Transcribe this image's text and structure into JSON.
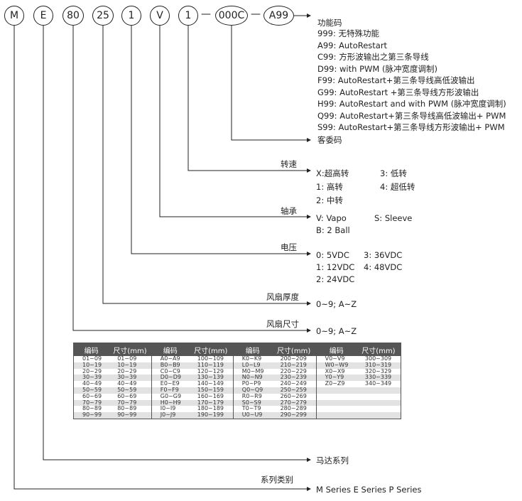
{
  "nodes": [
    {
      "id": "series",
      "label": "M"
    },
    {
      "id": "motor",
      "label": "E"
    },
    {
      "id": "size",
      "label": "80"
    },
    {
      "id": "thickness",
      "label": "25"
    },
    {
      "id": "voltage",
      "label": "1"
    },
    {
      "id": "bearing",
      "label": "V"
    },
    {
      "id": "speed",
      "label": "1"
    },
    {
      "id": "customer",
      "label": "000C"
    },
    {
      "id": "function",
      "label": "A99"
    }
  ],
  "dash": "—",
  "function_code": {
    "title": "功能码",
    "items": [
      "999: 无特殊功能",
      "A99: AutoRestart",
      "C99: 方形波输出之第三条导线",
      "D99: with PWM (脉冲宽度调制)",
      "F99: AutoRestart+第三条导线高低波输出",
      "G99: AutoRestart +第三条导线方形波输出",
      "H99: AutoRestart and with PWM (脉冲宽度调制)",
      "Q99: AutoRestart+第三条导线高低波输出+ PWM",
      "S99: AutoRestart+第三条导线方形波输出+ PWM"
    ]
  },
  "customer_code": {
    "title": "客委码"
  },
  "speed": {
    "title": "转速",
    "options": [
      "X:超高转",
      "3: 低转",
      "1: 高转",
      "4: 超低转",
      "2: 中转"
    ]
  },
  "bearing": {
    "title": "轴承",
    "options": [
      "V: Vapo",
      "S: Sleeve",
      "B: 2 Ball"
    ]
  },
  "voltage": {
    "title": "电压",
    "options": [
      "0:  5VDC",
      "3: 36VDC",
      "1: 12VDC",
      "4: 48VDC",
      "2: 24VDC"
    ]
  },
  "thickness": {
    "title": "风扇厚度",
    "value": "0~9; A~Z"
  },
  "size": {
    "title": "风扇尺寸",
    "value": "0~9; A~Z"
  },
  "motor": {
    "title": "马达系列"
  },
  "series": {
    "title": "系列类别",
    "value": "M Series  E Series  P Series"
  },
  "size_table": {
    "headers": [
      "编码",
      "尺寸(mm)",
      "编码",
      "尺寸(mm)",
      "编码",
      "尺寸(mm)",
      "编码",
      "尺寸(mm)"
    ],
    "rows": [
      [
        "01~09",
        "01~09",
        "A0~A9",
        "100~109",
        "K0~K9",
        "200~209",
        "V0~V9",
        "300~309"
      ],
      [
        "10~19",
        "10~19",
        "B0~B9",
        "110~119",
        "L0~L9",
        "210~219",
        "W0~W9",
        "310~319"
      ],
      [
        "20~29",
        "20~29",
        "C0~C9",
        "120~129",
        "M0~M9",
        "220~229",
        "X0~X9",
        "320~329"
      ],
      [
        "30~39",
        "30~39",
        "D0~D9",
        "130~139",
        "N0~N9",
        "230~239",
        "Y0~Y9",
        "330~339"
      ],
      [
        "40~49",
        "40~49",
        "E0~E9",
        "140~149",
        "P0~P9",
        "240~249",
        "Z0~Z9",
        "340~349"
      ],
      [
        "50~59",
        "50~59",
        "F0~F9",
        "150~159",
        "Q0~Q9",
        "250~259",
        "",
        ""
      ],
      [
        "60~69",
        "60~69",
        "G0~G9",
        "160~169",
        "R0~R9",
        "260~269",
        "",
        ""
      ],
      [
        "70~79",
        "70~79",
        "H0~H9",
        "170~179",
        "S0~S9",
        "270~279",
        "",
        ""
      ],
      [
        "80~89",
        "80~89",
        "I0~I9",
        "180~189",
        "T0~T9",
        "280~289",
        "",
        ""
      ],
      [
        "90~99",
        "90~99",
        "J0~J9",
        "190~199",
        "U0~U9",
        "290~299",
        "",
        ""
      ]
    ]
  }
}
